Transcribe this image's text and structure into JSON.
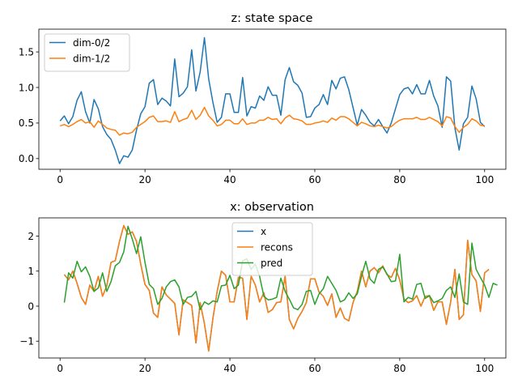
{
  "chart_data": [
    {
      "type": "line",
      "title": "z: state space",
      "xlabel": "",
      "ylabel": "",
      "xlim": [
        -5,
        105
      ],
      "ylim": [
        -0.15,
        1.82
      ],
      "xticks": [
        0,
        20,
        40,
        60,
        80,
        100
      ],
      "xtick_labels": [
        "0",
        "20",
        "40",
        "60",
        "80",
        "100"
      ],
      "yticks": [
        0.0,
        0.5,
        1.0,
        1.5
      ],
      "ytick_labels": [
        "0.0",
        "0.5",
        "1.0",
        "1.5"
      ],
      "grid": false,
      "legend": "upper-left",
      "x_start": 0,
      "series": [
        {
          "name": "dim-0/2",
          "color": "#1f77b4",
          "values": [
            0.53,
            0.6,
            0.49,
            0.59,
            0.82,
            0.94,
            0.66,
            0.5,
            0.83,
            0.7,
            0.45,
            0.34,
            0.27,
            0.12,
            -0.07,
            0.04,
            0.02,
            0.12,
            0.4,
            0.63,
            0.73,
            1.06,
            1.11,
            0.76,
            0.85,
            0.81,
            0.74,
            1.4,
            0.87,
            0.92,
            1.01,
            1.53,
            0.95,
            1.22,
            1.7,
            1.12,
            0.79,
            0.51,
            0.58,
            0.91,
            0.91,
            0.65,
            0.65,
            1.14,
            0.6,
            0.73,
            0.71,
            0.88,
            0.82,
            1.01,
            0.89,
            0.89,
            0.61,
            1.11,
            1.28,
            1.08,
            1.03,
            0.92,
            0.58,
            0.59,
            0.71,
            0.76,
            0.9,
            0.76,
            1.1,
            0.98,
            1.13,
            1.15,
            0.97,
            0.72,
            0.47,
            0.69,
            0.61,
            0.51,
            0.46,
            0.55,
            0.45,
            0.36,
            0.5,
            0.7,
            0.9,
            0.98,
            1.0,
            0.91,
            1.04,
            0.91,
            0.91,
            1.1,
            0.88,
            0.74,
            0.44,
            1.15,
            1.09,
            0.43,
            0.12,
            0.49,
            0.58,
            1.02,
            0.84,
            0.51,
            0.45
          ]
        },
        {
          "name": "dim-1/2",
          "color": "#ff7f0e",
          "values": [
            0.46,
            0.48,
            0.45,
            0.48,
            0.52,
            0.55,
            0.5,
            0.52,
            0.44,
            0.53,
            0.48,
            0.43,
            0.41,
            0.4,
            0.33,
            0.36,
            0.35,
            0.37,
            0.44,
            0.48,
            0.52,
            0.58,
            0.6,
            0.52,
            0.52,
            0.53,
            0.51,
            0.66,
            0.52,
            0.55,
            0.57,
            0.68,
            0.55,
            0.61,
            0.72,
            0.6,
            0.54,
            0.46,
            0.48,
            0.54,
            0.54,
            0.49,
            0.49,
            0.56,
            0.48,
            0.5,
            0.5,
            0.54,
            0.54,
            0.58,
            0.55,
            0.56,
            0.49,
            0.57,
            0.61,
            0.56,
            0.55,
            0.53,
            0.48,
            0.48,
            0.5,
            0.51,
            0.53,
            0.51,
            0.57,
            0.54,
            0.59,
            0.59,
            0.56,
            0.51,
            0.46,
            0.51,
            0.49,
            0.46,
            0.45,
            0.47,
            0.45,
            0.43,
            0.45,
            0.5,
            0.54,
            0.56,
            0.56,
            0.56,
            0.58,
            0.55,
            0.55,
            0.58,
            0.55,
            0.52,
            0.46,
            0.59,
            0.57,
            0.45,
            0.37,
            0.44,
            0.48,
            0.56,
            0.53,
            0.47,
            0.46
          ]
        }
      ]
    },
    {
      "type": "line",
      "title": "x: observation",
      "xlabel": "",
      "ylabel": "",
      "xlim": [
        -5,
        105
      ],
      "ylim": [
        -1.48,
        2.52
      ],
      "xticks": [
        0,
        20,
        40,
        60,
        80,
        100
      ],
      "xtick_labels": [
        "0",
        "20",
        "40",
        "60",
        "80",
        "100"
      ],
      "yticks": [
        -1,
        0,
        1,
        2
      ],
      "ytick_labels": [
        "−1",
        "0",
        "1",
        "2"
      ],
      "grid": false,
      "legend": "upper-center",
      "series": [
        {
          "name": "x",
          "color": "#1f77b4",
          "x_start": 1,
          "values": [
            0.9,
            0.75,
            1.0,
            0.65,
            0.25,
            0.05,
            0.6,
            0.42,
            0.85,
            0.28,
            0.58,
            1.25,
            1.3,
            1.85,
            2.3,
            2.05,
            2.12,
            1.85,
            1.2,
            0.62,
            0.45,
            -0.2,
            -0.32,
            0.55,
            0.32,
            0.2,
            0.08,
            -0.82,
            0.18,
            0.1,
            0.02,
            -1.05,
            0.1,
            -0.5,
            -1.28,
            -0.35,
            0.42,
            1.0,
            0.88,
            0.12,
            0.12,
            0.82,
            0.8,
            -0.38,
            0.85,
            0.6,
            0.12,
            0.38,
            -0.18,
            -0.1,
            0.1,
            0.12,
            0.85,
            -0.38,
            -0.65,
            -0.35,
            -0.15,
            0.1,
            0.78,
            0.78,
            0.4,
            0.28,
            0.02,
            0.35,
            -0.32,
            -0.05,
            -0.35,
            -0.42,
            0.1,
            0.42,
            1.0,
            0.55,
            1.0,
            1.1,
            0.95,
            1.15,
            0.9,
            0.82,
            1.08,
            0.75,
            0.2,
            0.1,
            0.15,
            0.3,
            0.0,
            0.28,
            0.3,
            -0.12,
            0.12,
            0.12,
            -0.52,
            0.12,
            1.05,
            -0.38,
            -0.25,
            1.88,
            0.9,
            0.72,
            -0.15,
            0.95,
            1.05
          ]
        },
        {
          "name": "recons",
          "color": "#ff7f0e",
          "x_start": 1,
          "values": [
            0.9,
            0.75,
            1.0,
            0.65,
            0.25,
            0.05,
            0.6,
            0.42,
            0.85,
            0.28,
            0.58,
            1.25,
            1.3,
            1.85,
            2.3,
            2.05,
            2.12,
            1.85,
            1.2,
            0.62,
            0.45,
            -0.2,
            -0.32,
            0.55,
            0.32,
            0.2,
            0.08,
            -0.82,
            0.18,
            0.1,
            0.02,
            -1.05,
            0.1,
            -0.5,
            -1.28,
            -0.35,
            0.42,
            1.0,
            0.88,
            0.12,
            0.12,
            0.82,
            0.8,
            -0.38,
            0.85,
            0.6,
            0.12,
            0.38,
            -0.18,
            -0.1,
            0.1,
            0.12,
            0.85,
            -0.38,
            -0.65,
            -0.35,
            -0.15,
            0.1,
            0.78,
            0.78,
            0.4,
            0.28,
            0.02,
            0.35,
            -0.32,
            -0.05,
            -0.35,
            -0.42,
            0.1,
            0.42,
            1.0,
            0.55,
            1.0,
            1.1,
            0.95,
            1.15,
            0.9,
            0.82,
            1.08,
            0.75,
            0.2,
            0.1,
            0.15,
            0.3,
            0.0,
            0.28,
            0.3,
            -0.12,
            0.12,
            0.12,
            -0.52,
            0.12,
            1.05,
            -0.38,
            -0.25,
            1.88,
            0.9,
            0.72,
            -0.15,
            0.95,
            1.05
          ]
        },
        {
          "name": "pred",
          "color": "#2ca02c",
          "x_start": 1,
          "values": [
            0.1,
            0.95,
            0.8,
            1.28,
            0.98,
            1.12,
            0.85,
            0.42,
            0.52,
            0.95,
            0.42,
            0.7,
            1.15,
            1.25,
            1.55,
            2.28,
            1.92,
            1.5,
            1.98,
            1.25,
            0.62,
            0.5,
            0.05,
            0.22,
            0.55,
            0.7,
            0.75,
            0.55,
            0.05,
            0.25,
            0.28,
            0.42,
            -0.1,
            0.12,
            0.05,
            0.15,
            0.12,
            0.58,
            0.6,
            0.88,
            0.5,
            0.6,
            1.3,
            1.35,
            1.05,
            1.2,
            0.85,
            0.28,
            0.18,
            0.2,
            0.25,
            0.8,
            0.42,
            0.2,
            -0.05,
            -0.1,
            0.05,
            0.42,
            0.45,
            0.05,
            0.35,
            0.5,
            0.85,
            0.65,
            0.45,
            0.12,
            0.18,
            0.38,
            0.22,
            0.35,
            0.85,
            1.28,
            0.78,
            0.65,
            1.05,
            1.12,
            0.92,
            0.7,
            0.72,
            1.48,
            0.12,
            0.25,
            0.2,
            0.62,
            0.65,
            0.22,
            0.3,
            0.1,
            0.15,
            0.22,
            0.45,
            0.55,
            0.25,
            0.92,
            0.12,
            0.05,
            1.8,
            1.05,
            0.82,
            0.6,
            0.25,
            0.65,
            0.6
          ]
        }
      ]
    }
  ]
}
